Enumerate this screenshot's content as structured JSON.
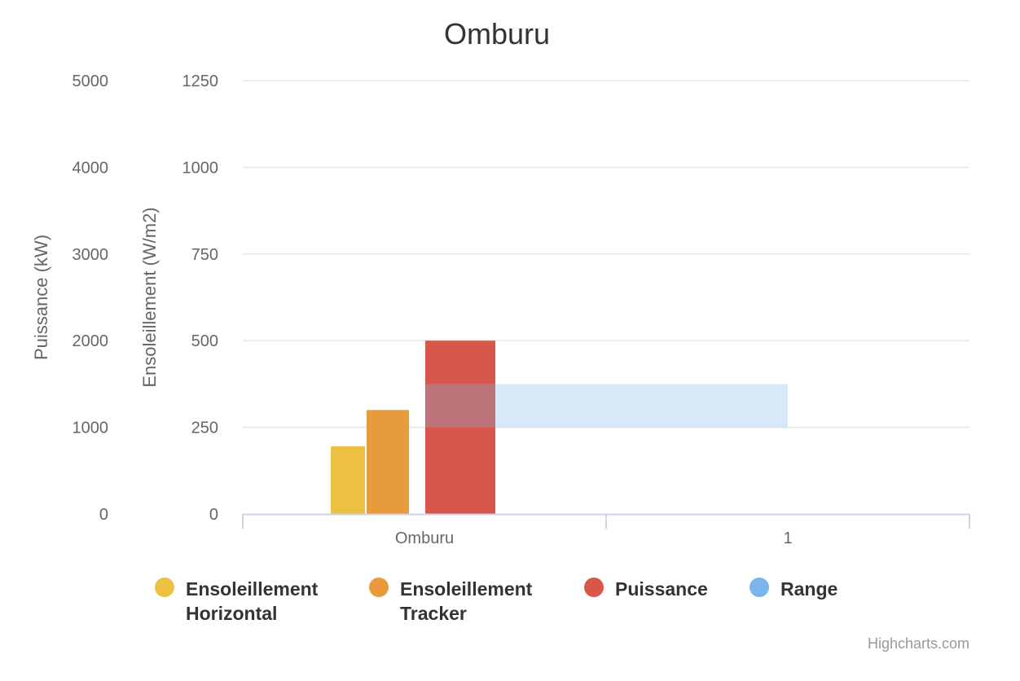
{
  "chart_data": {
    "type": "bar",
    "title": "Omburu",
    "categories": [
      "Omburu",
      "1"
    ],
    "y_axes": [
      {
        "id": "puissance",
        "title": "Puissance (kW)",
        "min": 0,
        "max": 5000,
        "ticks": [
          "0",
          "1000",
          "2000",
          "3000",
          "4000",
          "5000"
        ]
      },
      {
        "id": "ensoleillement",
        "title": "Ensoleillement (W/m2)",
        "min": 0,
        "max": 1250,
        "ticks": [
          "0",
          "250",
          "500",
          "750",
          "1000",
          "1250"
        ]
      }
    ],
    "series": [
      {
        "name": "Ensoleillement Horizontal",
        "name_lines": [
          "Ensoleillement",
          "Horizontal"
        ],
        "axis": "ensoleillement",
        "color": "#ecc040",
        "values": [
          195,
          null
        ]
      },
      {
        "name": "Ensoleillement Tracker",
        "name_lines": [
          "Ensoleillement",
          "Tracker"
        ],
        "axis": "ensoleillement",
        "color": "#e89b3c",
        "values": [
          300,
          null
        ]
      },
      {
        "name": "Puissance",
        "name_lines": [
          "Puissance"
        ],
        "axis": "puissance",
        "color": "#d9574a",
        "values": [
          2000,
          null
        ]
      },
      {
        "name": "Range",
        "name_lines": [
          "Range"
        ],
        "axis": "ensoleillement",
        "color": "#7cb5ec",
        "range": {
          "low": 250,
          "high": 375,
          "from": "Omburu",
          "to": "1"
        }
      }
    ],
    "legend_position": "bottom",
    "grid": true,
    "credits": "Highcharts.com"
  }
}
